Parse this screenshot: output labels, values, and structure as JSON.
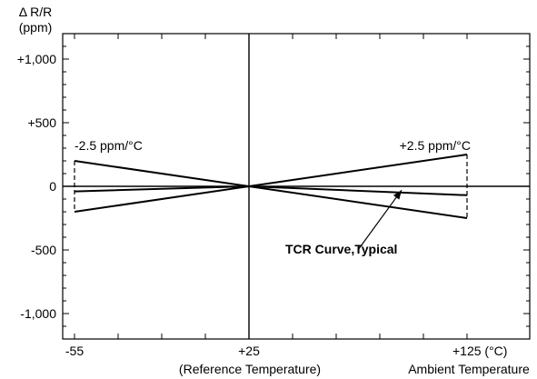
{
  "chart_data": {
    "type": "line",
    "ylabel_line1": "Δ R/R",
    "ylabel_line2": "(ppm)",
    "xlim": [
      -55,
      125
    ],
    "ylim": [
      -1200,
      1200
    ],
    "x_ticks": [
      {
        "value": -55,
        "label": "-55"
      },
      {
        "value": 25,
        "label": "+25"
      },
      {
        "value": 125,
        "label": "+125 (°C)"
      }
    ],
    "y_ticks": [
      {
        "value": 1000,
        "label": "+1,000"
      },
      {
        "value": 500,
        "label": "+500"
      },
      {
        "value": 0,
        "label": "0"
      },
      {
        "value": -500,
        "label": "-500"
      },
      {
        "value": -1000,
        "label": "-1,000"
      }
    ],
    "x_sublabels": {
      "reference": "(Reference Temperature)",
      "ambient": "Ambient Temperature"
    },
    "series": [
      {
        "name": "+2.5 ppm/°C",
        "x": [
          -55,
          25,
          125
        ],
        "y": [
          -200,
          0,
          250
        ]
      },
      {
        "name": "-2.5 ppm/°C",
        "x": [
          -55,
          25,
          125
        ],
        "y": [
          200,
          0,
          -250
        ]
      },
      {
        "x": [
          -55,
          25,
          125
        ],
        "y": [
          -40,
          0,
          -70
        ]
      }
    ],
    "annotations": {
      "left_label": "-2.5 ppm/°C",
      "right_label": "+2.5 ppm/°C",
      "typical_label": "TCR Curve,Typical"
    },
    "dashed_bounds": {
      "left": {
        "x": -55,
        "y_top": 200,
        "y_bottom": -200
      },
      "right": {
        "x": 125,
        "y_top": 250,
        "y_bottom": -250
      }
    },
    "arrow": {
      "tail": [
        75,
        -500
      ],
      "head": [
        95,
        -30
      ]
    },
    "minor_ticks": {
      "x_step": 20,
      "y_step": 100
    }
  }
}
